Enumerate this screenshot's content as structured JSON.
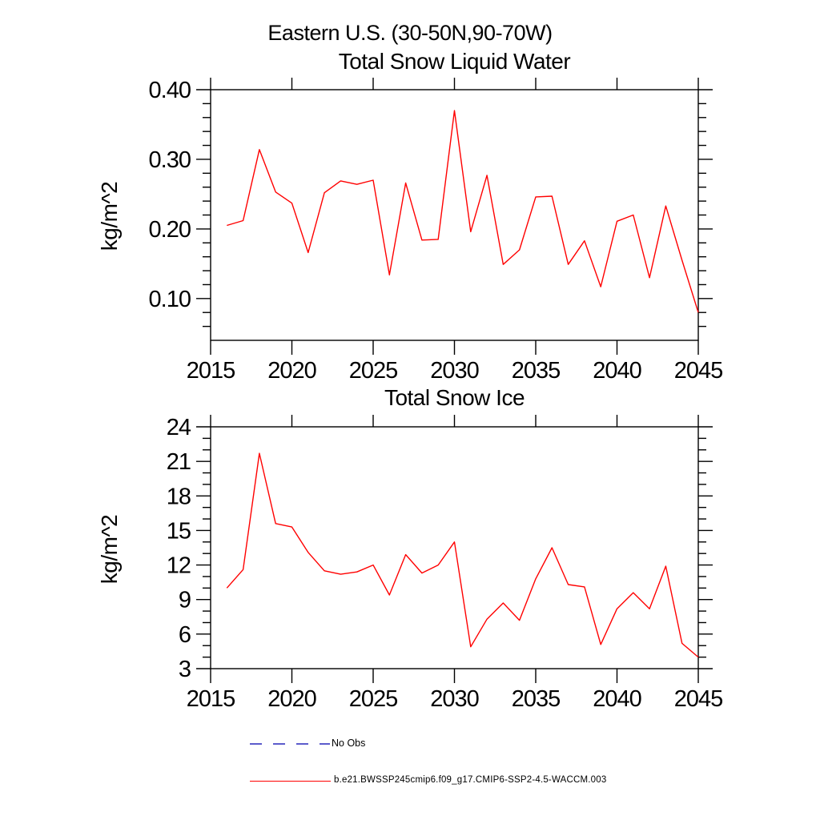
{
  "main_title": "Eastern U.S. (30-50N,90-70W)",
  "line_color": "#ff0000",
  "axis_color": "#000000",
  "chart_data": [
    {
      "type": "line",
      "title": "Total Snow Liquid Water",
      "ylabel": "kg/m^2",
      "xlabel": "",
      "xlim": [
        2015,
        2045
      ],
      "ylim": [
        0.04,
        0.4
      ],
      "grid": false,
      "xticks": [
        2015,
        2020,
        2025,
        2030,
        2035,
        2040,
        2045
      ],
      "ytick_values": [
        0.1,
        0.2,
        0.3,
        0.4
      ],
      "ytick_labels": [
        "0.10",
        "0.20",
        "0.30",
        "0.40"
      ],
      "yminor_step": 0.02,
      "x": [
        2016,
        2017,
        2018,
        2019,
        2020,
        2021,
        2022,
        2023,
        2024,
        2025,
        2026,
        2027,
        2028,
        2029,
        2030,
        2031,
        2032,
        2033,
        2034,
        2035,
        2036,
        2037,
        2038,
        2039,
        2040,
        2041,
        2042,
        2043,
        2044,
        2045
      ],
      "series": [
        {
          "name": "b.e21.BWSSP245cmip6.f09_g17.CMIP6-SSP2-4.5-WACCM.003",
          "color": "#ff0000",
          "values": [
            0.205,
            0.212,
            0.314,
            0.253,
            0.237,
            0.166,
            0.252,
            0.269,
            0.264,
            0.27,
            0.134,
            0.266,
            0.184,
            0.185,
            0.37,
            0.196,
            0.277,
            0.149,
            0.17,
            0.246,
            0.247,
            0.149,
            0.183,
            0.117,
            0.211,
            0.22,
            0.13,
            0.233,
            0.155,
            0.08
          ]
        }
      ]
    },
    {
      "type": "line",
      "title": "Total Snow Ice",
      "ylabel": "kg/m^2",
      "xlabel": "",
      "xlim": [
        2015,
        2045
      ],
      "ylim": [
        3,
        24
      ],
      "grid": false,
      "xticks": [
        2015,
        2020,
        2025,
        2030,
        2035,
        2040,
        2045
      ],
      "ytick_values": [
        3,
        6,
        9,
        12,
        15,
        18,
        21,
        24
      ],
      "ytick_labels": [
        "3",
        "6",
        "9",
        "12",
        "15",
        "18",
        "21",
        "24"
      ],
      "yminor_step": 1,
      "x": [
        2016,
        2017,
        2018,
        2019,
        2020,
        2021,
        2022,
        2023,
        2024,
        2025,
        2026,
        2027,
        2028,
        2029,
        2030,
        2031,
        2032,
        2033,
        2034,
        2035,
        2036,
        2037,
        2038,
        2039,
        2040,
        2041,
        2042,
        2043,
        2044,
        2045
      ],
      "series": [
        {
          "name": "b.e21.BWSSP245cmip6.f09_g17.CMIP6-SSP2-4.5-WACCM.003",
          "color": "#ff0000",
          "values": [
            10.0,
            11.6,
            21.7,
            15.6,
            15.3,
            13.1,
            11.5,
            11.2,
            11.4,
            12.0,
            9.4,
            12.9,
            11.3,
            12.0,
            14.0,
            4.9,
            7.3,
            8.7,
            7.2,
            10.8,
            13.5,
            10.3,
            10.1,
            5.1,
            8.2,
            9.6,
            8.2,
            11.9,
            5.2,
            4.0
          ]
        }
      ]
    }
  ],
  "legend": {
    "items": [
      {
        "label": "No Obs",
        "color": "#5c5ccc",
        "style": "dashed"
      },
      {
        "label": "b.e21.BWSSP245cmip6.f09_g17.CMIP6-SSP2-4.5-WACCM.003",
        "color": "#ff0000",
        "style": "solid"
      }
    ]
  }
}
